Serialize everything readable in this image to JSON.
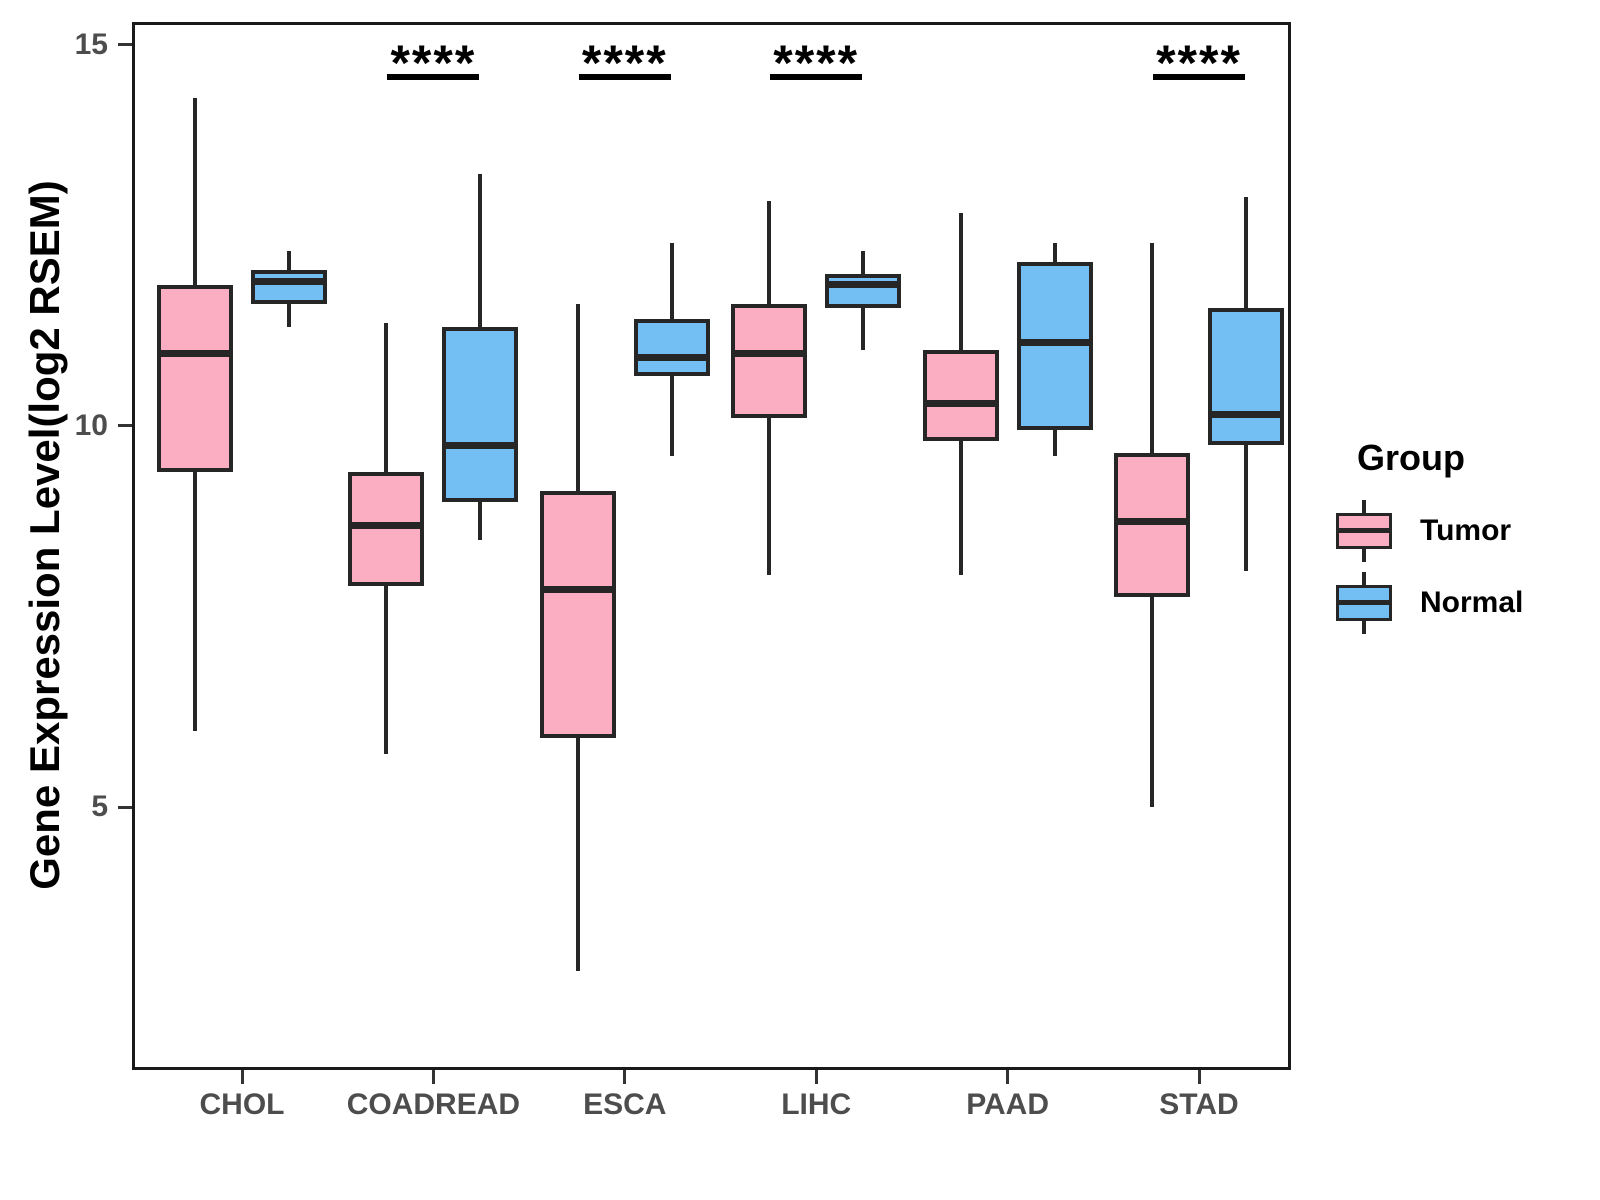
{
  "chart_data": {
    "type": "boxplot",
    "title": "",
    "xlabel": "",
    "ylabel": "Gene Expression Level(log2 RSEM)",
    "categories": [
      "CHOL",
      "COADREAD",
      "ESCA",
      "LIHC",
      "PAAD",
      "STAD"
    ],
    "yticks": [
      5,
      10,
      15
    ],
    "ylim": [
      1.55,
      15.3
    ],
    "grid": false,
    "legend_position": "right",
    "groups": [
      {
        "name": "Tumor",
        "color": "#FBAEC1"
      },
      {
        "name": "Normal",
        "color": "#73BEF2"
      }
    ],
    "series": [
      {
        "category": "CHOL",
        "group": "Tumor",
        "min": 6.0,
        "q1": 9.4,
        "median": 10.95,
        "q3": 11.85,
        "max": 14.3
      },
      {
        "category": "CHOL",
        "group": "Normal",
        "min": 11.3,
        "q1": 11.6,
        "median": 11.9,
        "q3": 12.05,
        "max": 12.3
      },
      {
        "category": "COADREAD",
        "group": "Tumor",
        "min": 5.7,
        "q1": 7.9,
        "median": 8.7,
        "q3": 9.4,
        "max": 11.35
      },
      {
        "category": "COADREAD",
        "group": "Normal",
        "min": 8.5,
        "q1": 9.0,
        "median": 9.75,
        "q3": 11.3,
        "max": 13.3
      },
      {
        "category": "ESCA",
        "group": "Tumor",
        "min": 2.85,
        "q1": 5.9,
        "median": 7.85,
        "q3": 9.15,
        "max": 11.6
      },
      {
        "category": "ESCA",
        "group": "Normal",
        "min": 9.6,
        "q1": 10.65,
        "median": 10.9,
        "q3": 11.4,
        "max": 12.4
      },
      {
        "category": "LIHC",
        "group": "Tumor",
        "min": 8.05,
        "q1": 10.1,
        "median": 10.95,
        "q3": 11.6,
        "max": 12.95
      },
      {
        "category": "LIHC",
        "group": "Normal",
        "min": 11.0,
        "q1": 11.55,
        "median": 11.85,
        "q3": 12.0,
        "max": 12.3
      },
      {
        "category": "PAAD",
        "group": "Tumor",
        "min": 8.05,
        "q1": 9.8,
        "median": 10.3,
        "q3": 11.0,
        "max": 12.8
      },
      {
        "category": "PAAD",
        "group": "Normal",
        "min": 9.6,
        "q1": 9.95,
        "median": 11.1,
        "q3": 12.15,
        "max": 12.4
      },
      {
        "category": "STAD",
        "group": "Tumor",
        "min": 5.0,
        "q1": 7.75,
        "median": 8.75,
        "q3": 9.65,
        "max": 12.4
      },
      {
        "category": "STAD",
        "group": "Normal",
        "min": 8.1,
        "q1": 9.75,
        "median": 10.15,
        "q3": 11.55,
        "max": 13.0
      }
    ],
    "significance": [
      {
        "category": "COADREAD",
        "label": "****"
      },
      {
        "category": "ESCA",
        "label": "****"
      },
      {
        "category": "LIHC",
        "label": "****"
      },
      {
        "category": "STAD",
        "label": "****"
      }
    ]
  },
  "legend": {
    "title": "Group",
    "items": [
      {
        "label": "Tumor",
        "color": "#FBAEC1"
      },
      {
        "label": "Normal",
        "color": "#73BEF2"
      }
    ]
  }
}
